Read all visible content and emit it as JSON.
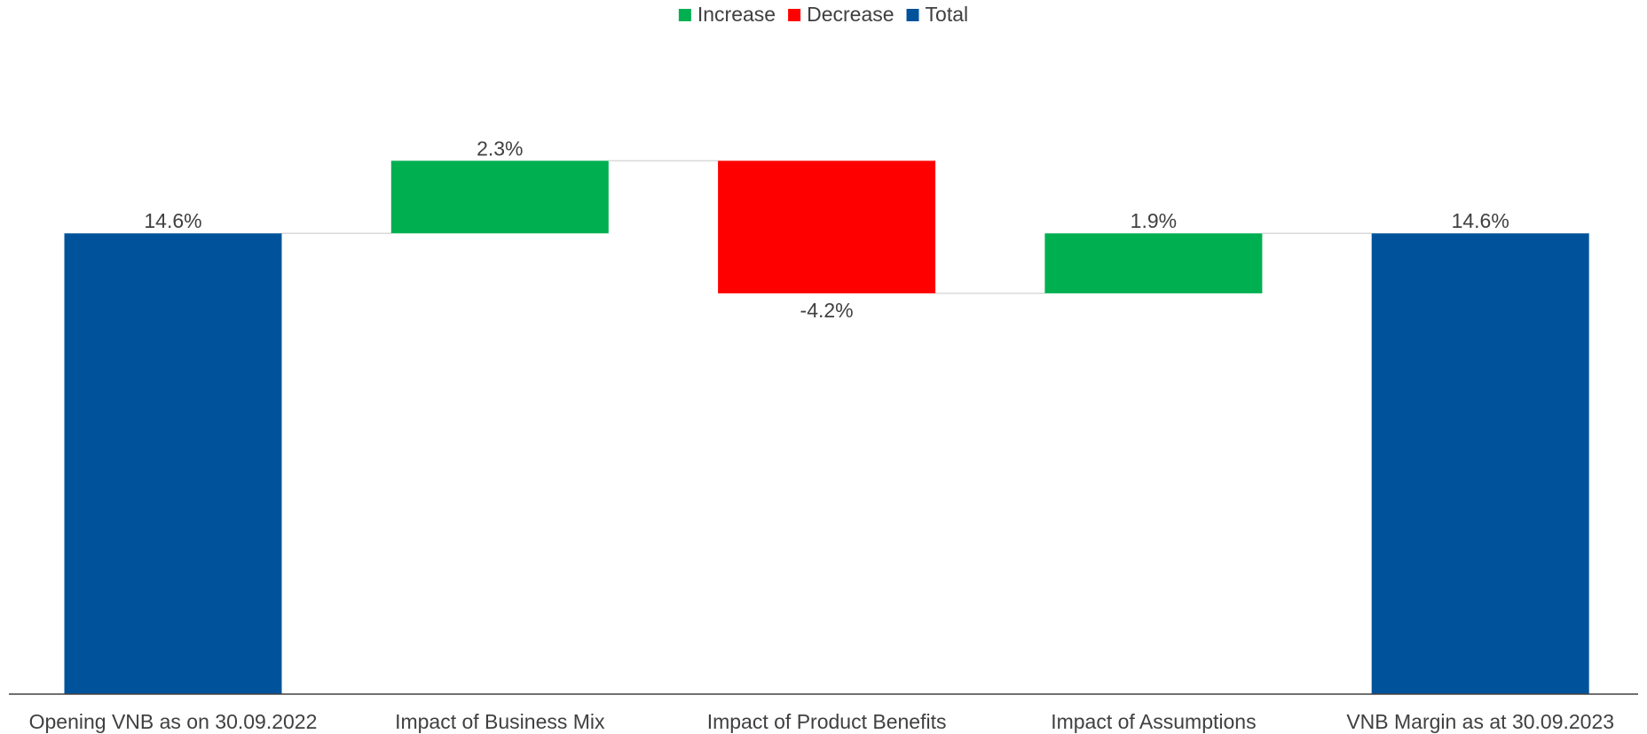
{
  "chart_data": {
    "type": "waterfall",
    "categories": [
      "Opening VNB  as on 30.09.2022",
      "Impact of Business Mix",
      "Impact of Product Benefits",
      "Impact of Assumptions",
      "VNB Margin as at 30.09.2023"
    ],
    "values": [
      14.6,
      2.3,
      -4.2,
      1.9,
      14.6
    ],
    "kinds": [
      "total",
      "increase",
      "decrease",
      "increase",
      "total"
    ],
    "value_labels": [
      "14.6%",
      "2.3%",
      "-4.2%",
      "1.9%",
      "14.6%"
    ],
    "title": "",
    "xlabel": "",
    "ylabel": "",
    "ylim": [
      0,
      16.9
    ],
    "grid": false,
    "legend": {
      "placement": "top-center",
      "items": [
        {
          "label": "Increase",
          "kind": "increase"
        },
        {
          "label": "Decrease",
          "kind": "decrease"
        },
        {
          "label": "Total",
          "kind": "total"
        }
      ]
    },
    "colors": {
      "increase": "#00B050",
      "decrease": "#FF0000",
      "total": "#00529B",
      "connector": "#D9D9D9",
      "axis": "#404040"
    }
  }
}
